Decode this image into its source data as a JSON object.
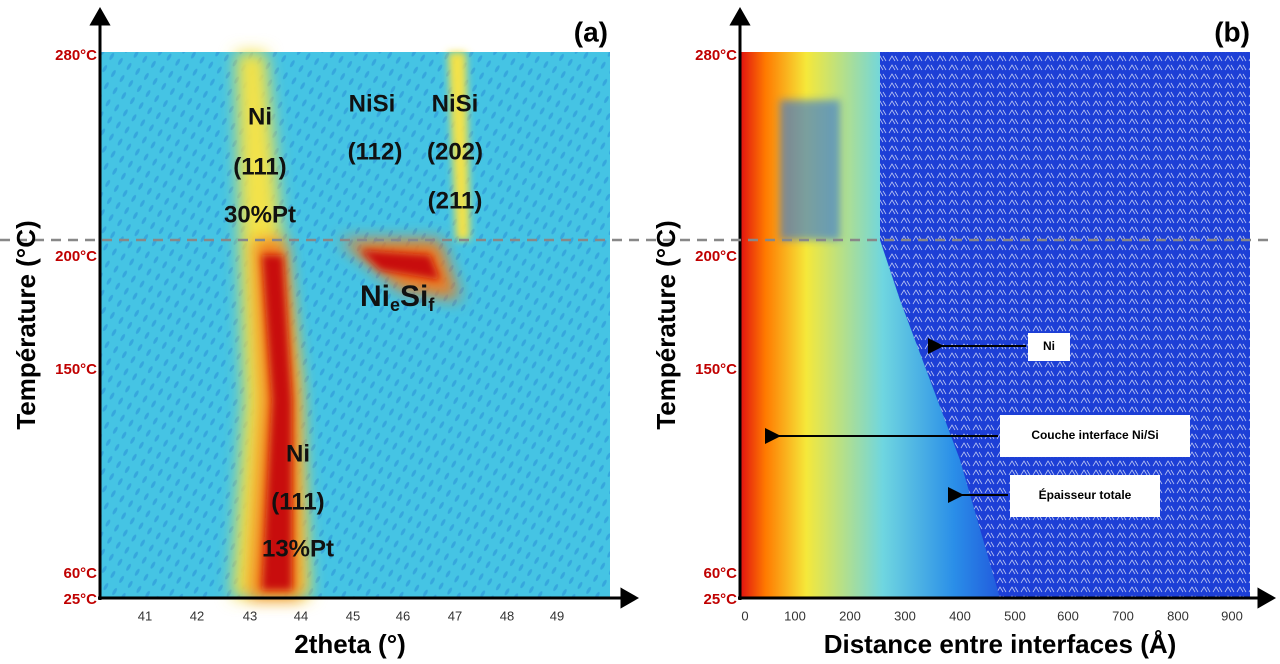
{
  "panels": [
    {
      "label": "(a)",
      "y_axis_title": "Température (°C)",
      "x_axis_title": "2theta (°)",
      "y_ticks": [
        "280°C",
        "200°C",
        "150°C",
        "60°C",
        "25°C"
      ],
      "x_ticks": [
        "41",
        "42",
        "43",
        "44",
        "45",
        "46",
        "47",
        "48",
        "49"
      ],
      "annotations": [
        "Ni",
        "(111)",
        "30%Pt",
        "NiSi",
        "(112)",
        "NiSi",
        "(202)",
        "(211)",
        "Ni",
        "(111)",
        "13%Pt"
      ],
      "phase_label": {
        "base1": "Ni",
        "sub1": "e",
        "base2": "Si",
        "sub2": "f"
      }
    },
    {
      "label": "(b)",
      "y_axis_title": "Température (°C)",
      "x_axis_title": "Distance entre interfaces (Å)",
      "y_ticks": [
        "280°C",
        "200°C",
        "150°C",
        "60°C",
        "25°C"
      ],
      "x_ticks": [
        "0",
        "100",
        "200",
        "300",
        "400",
        "500",
        "600",
        "700",
        "800",
        "900"
      ],
      "annotations": [
        "Ni",
        "Couche interface Ni/Si",
        "Épaisseur totale"
      ]
    }
  ]
}
